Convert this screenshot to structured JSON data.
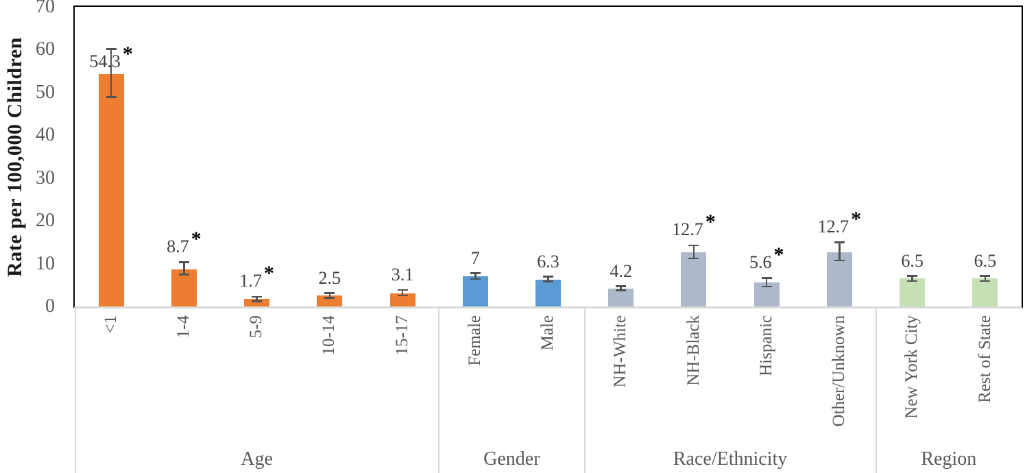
{
  "chart_data": {
    "type": "bar",
    "title": "",
    "ylabel": "Rate per 100,000 Children",
    "ylim": [
      0,
      70
    ],
    "y_ticks": [
      0,
      10,
      20,
      30,
      40,
      50,
      60,
      70
    ],
    "grid": "off",
    "legend": "none",
    "error_bars": true,
    "significance_marker": "*",
    "groups": [
      {
        "label": "Age",
        "color": "#ED7D31",
        "bars": [
          {
            "label": "<1",
            "value": 54.3,
            "display": "54.3",
            "significant": true,
            "err_lo": 48.9,
            "err_hi": 60.1
          },
          {
            "label": "1-4",
            "value": 8.7,
            "display": "8.7",
            "significant": true,
            "err_lo": 7.4,
            "err_hi": 10.3
          },
          {
            "label": "5-9",
            "value": 1.7,
            "display": "1.7",
            "significant": true,
            "err_lo": 1.2,
            "err_hi": 2.2
          },
          {
            "label": "10-14",
            "value": 2.5,
            "display": "2.5",
            "significant": false,
            "err_lo": 2.0,
            "err_hi": 3.1
          },
          {
            "label": "15-17",
            "value": 3.1,
            "display": "3.1",
            "significant": false,
            "err_lo": 2.5,
            "err_hi": 3.8
          }
        ]
      },
      {
        "label": "Gender",
        "color": "#5B9BD5",
        "bars": [
          {
            "label": "Female",
            "value": 7,
            "display": "7",
            "significant": false,
            "err_lo": 6.4,
            "err_hi": 7.7
          },
          {
            "label": "Male",
            "value": 6.3,
            "display": "6.3",
            "significant": false,
            "err_lo": 5.8,
            "err_hi": 6.9
          }
        ]
      },
      {
        "label": "Race/Ethnicity",
        "color": "#ADB9CA",
        "bars": [
          {
            "label": "NH-White",
            "value": 4.2,
            "display": "4.2",
            "significant": false,
            "err_lo": 3.7,
            "err_hi": 4.7
          },
          {
            "label": "NH-Black",
            "value": 12.7,
            "display": "12.7",
            "significant": true,
            "err_lo": 11.2,
            "err_hi": 14.2
          },
          {
            "label": "Hispanic",
            "value": 5.6,
            "display": "5.6",
            "significant": true,
            "err_lo": 4.6,
            "err_hi": 6.6
          },
          {
            "label": "Other/Unknown",
            "value": 12.7,
            "display": "12.7",
            "significant": true,
            "err_lo": 10.7,
            "err_hi": 14.9
          }
        ]
      },
      {
        "label": "Region",
        "color": "#C5E0B4",
        "bars": [
          {
            "label": "New York City",
            "value": 6.5,
            "display": "6.5",
            "significant": false,
            "err_lo": 5.9,
            "err_hi": 7.1
          },
          {
            "label": "Rest of State",
            "value": 6.5,
            "display": "6.5",
            "significant": false,
            "err_lo": 5.9,
            "err_hi": 7.1
          }
        ]
      }
    ],
    "colors": {
      "plot_border": "#000000",
      "axis_line": "#d9d9d9",
      "error_bar": "#525252",
      "tick_text": "#595959",
      "data_label_text": "#404040",
      "significance_star": "#000000",
      "background": "#ffffff"
    }
  }
}
